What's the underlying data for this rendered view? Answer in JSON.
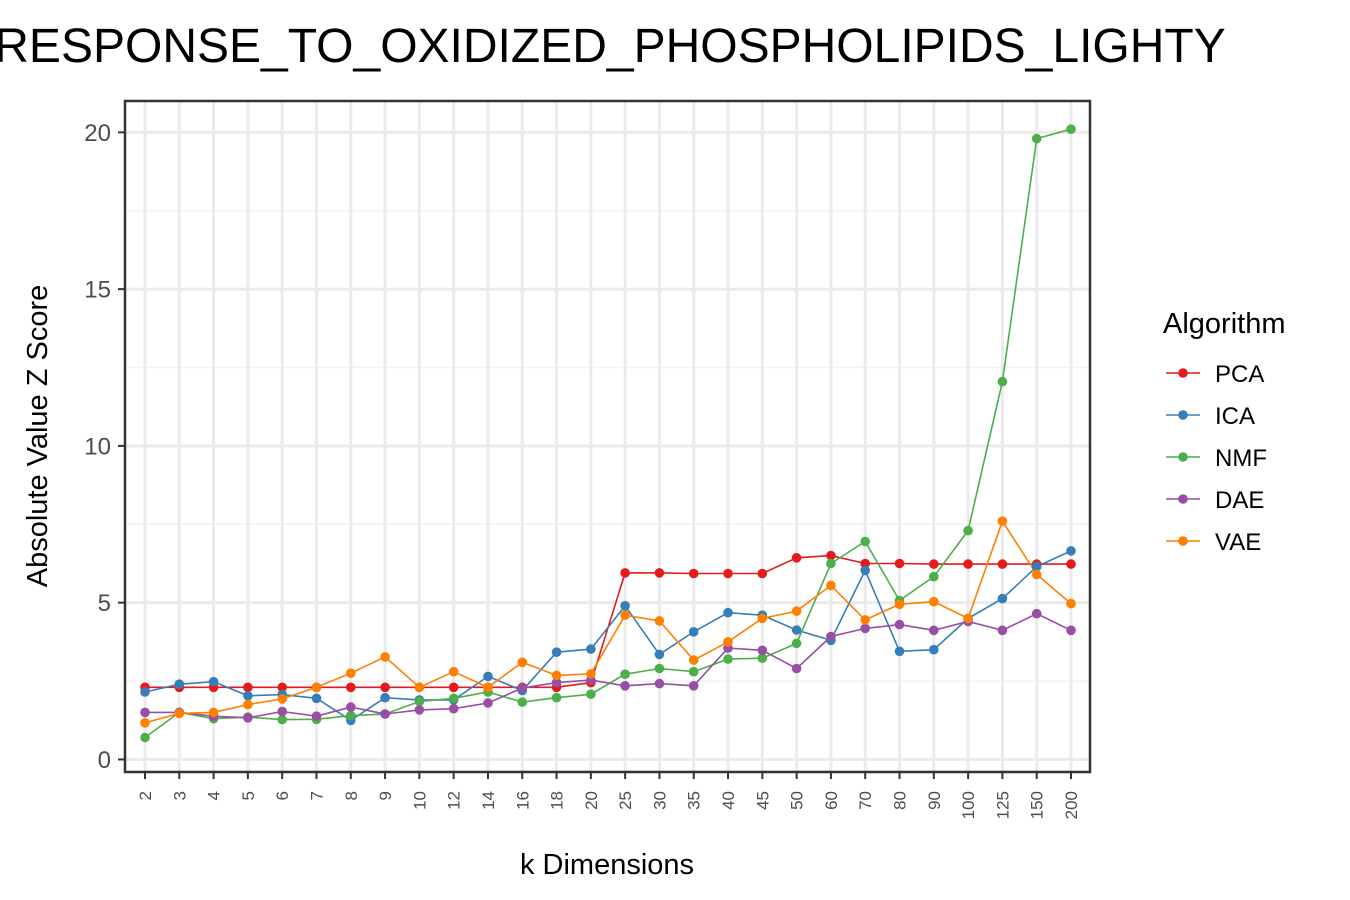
{
  "chart_data": {
    "type": "line",
    "title": "RESPONSE_TO_OXIDIZED_PHOSPHOLIPIDS_LIGHTY",
    "xlabel": "k Dimensions",
    "ylabel": "Absolute Value Z Score",
    "categories": [
      "2",
      "3",
      "4",
      "5",
      "6",
      "7",
      "8",
      "9",
      "10",
      "12",
      "14",
      "16",
      "18",
      "20",
      "25",
      "30",
      "35",
      "40",
      "45",
      "50",
      "60",
      "70",
      "80",
      "90",
      "100",
      "125",
      "150",
      "200"
    ],
    "yticks": [
      0,
      5,
      10,
      15,
      20
    ],
    "ylim": [
      -0.4,
      21.0
    ],
    "grid": true,
    "legend": {
      "title": "Algorithm",
      "position": "right"
    },
    "series": [
      {
        "name": "PCA",
        "color": "#e41a1c",
        "values": [
          2.3,
          2.3,
          2.3,
          2.3,
          2.3,
          2.3,
          2.3,
          2.3,
          2.3,
          2.3,
          2.3,
          2.3,
          2.3,
          2.45,
          5.95,
          5.95,
          5.93,
          5.93,
          5.93,
          6.43,
          6.5,
          6.25,
          6.25,
          6.23,
          6.23,
          6.23,
          6.23,
          6.23
        ]
      },
      {
        "name": "ICA",
        "color": "#377eb8",
        "values": [
          2.15,
          2.4,
          2.48,
          2.03,
          2.07,
          1.95,
          1.25,
          1.97,
          1.9,
          1.9,
          2.65,
          2.2,
          3.42,
          3.52,
          4.9,
          3.35,
          4.07,
          4.68,
          4.6,
          4.13,
          3.8,
          6.03,
          3.45,
          3.5,
          4.5,
          5.13,
          6.15,
          6.65
        ]
      },
      {
        "name": "NMF",
        "color": "#4daf4a",
        "values": [
          0.7,
          1.5,
          1.3,
          1.35,
          1.27,
          1.28,
          1.4,
          1.45,
          1.85,
          1.95,
          2.15,
          1.83,
          1.97,
          2.08,
          2.72,
          2.9,
          2.8,
          3.2,
          3.23,
          3.7,
          6.25,
          6.95,
          5.07,
          5.83,
          7.3,
          12.05,
          19.8,
          20.1
        ]
      },
      {
        "name": "DAE",
        "color": "#984ea3",
        "values": [
          1.5,
          1.5,
          1.38,
          1.33,
          1.53,
          1.38,
          1.67,
          1.45,
          1.58,
          1.62,
          1.8,
          2.28,
          2.45,
          2.53,
          2.35,
          2.42,
          2.35,
          3.55,
          3.48,
          2.9,
          3.92,
          4.18,
          4.3,
          4.12,
          4.4,
          4.12,
          4.65,
          4.12
        ]
      },
      {
        "name": "VAE",
        "color": "#ff7f00",
        "values": [
          1.17,
          1.47,
          1.5,
          1.75,
          1.93,
          2.3,
          2.75,
          3.27,
          2.3,
          2.8,
          2.3,
          3.1,
          2.68,
          2.73,
          4.6,
          4.42,
          3.17,
          3.75,
          4.5,
          4.73,
          5.55,
          4.45,
          4.95,
          5.03,
          4.5,
          7.6,
          5.9,
          4.97
        ]
      }
    ]
  }
}
